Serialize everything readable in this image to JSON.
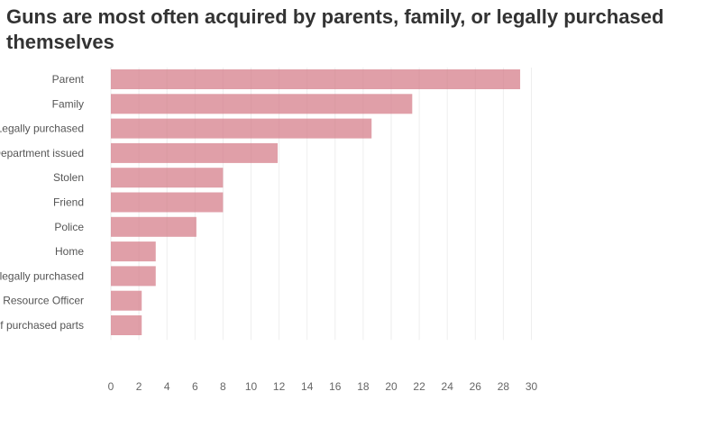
{
  "chart_data": {
    "type": "bar",
    "orientation": "horizontal",
    "title": "Guns are most often acquired by parents, family, or legally purchased themselves",
    "categories": [
      "Parent",
      "Family",
      "Legally purchased",
      "Department issued",
      "Stolen",
      "Friend",
      "Police",
      "Home",
      "Illegally purchased",
      "Resource Officer",
      "Self purchased parts"
    ],
    "values": [
      29.2,
      21.5,
      18.6,
      11.9,
      8,
      8,
      6.1,
      3.2,
      3.2,
      2.2,
      2.2
    ],
    "xlim": [
      0,
      31
    ],
    "xticks": [
      0,
      2,
      4,
      6,
      8,
      10,
      12,
      14,
      16,
      18,
      20,
      22,
      24,
      26,
      28,
      30
    ],
    "xlabel": "",
    "ylabel": "",
    "grid": true,
    "bar_color": "#d47a86"
  }
}
